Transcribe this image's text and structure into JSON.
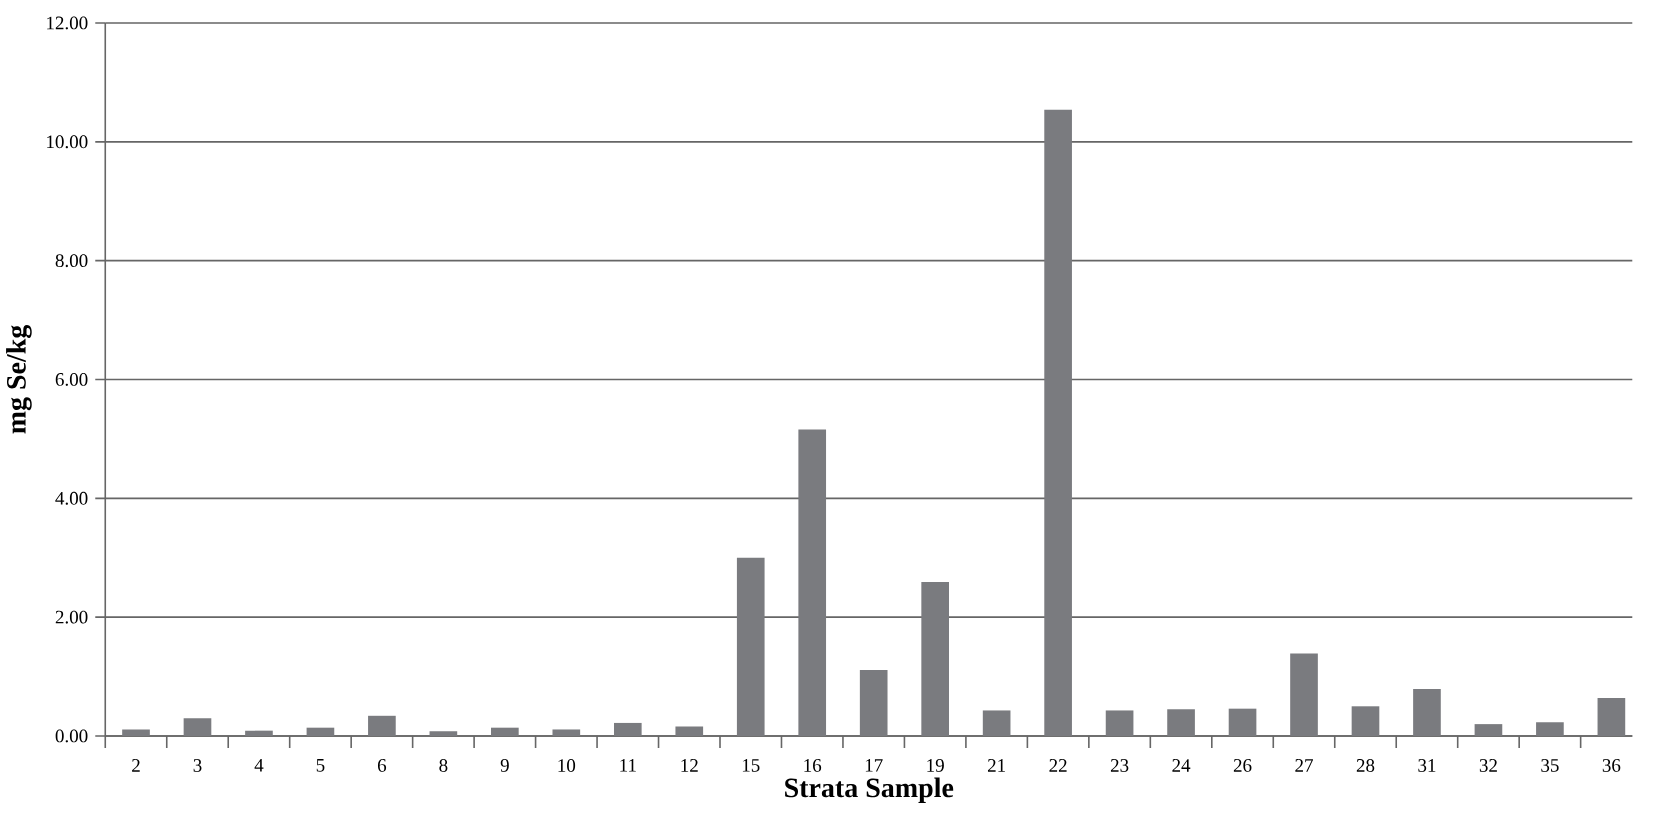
{
  "chart_data": {
    "type": "bar",
    "xlabel": "Strata Sample",
    "ylabel": "mg Se/kg",
    "categories": [
      "2",
      "3",
      "4",
      "5",
      "6",
      "8",
      "9",
      "10",
      "11",
      "12",
      "15",
      "16",
      "17",
      "19",
      "21",
      "22",
      "23",
      "24",
      "26",
      "27",
      "28",
      "31",
      "32",
      "35",
      "36"
    ],
    "values": [
      0.11,
      0.3,
      0.09,
      0.14,
      0.34,
      0.08,
      0.14,
      0.11,
      0.22,
      0.16,
      3.0,
      5.16,
      1.11,
      2.59,
      0.43,
      10.54,
      0.43,
      0.45,
      0.46,
      1.39,
      0.5,
      0.79,
      0.2,
      0.23,
      0.64
    ],
    "color": "#7a7b7f",
    "ylim": [
      0,
      12
    ],
    "yticks": [
      {
        "value": 0,
        "label": "0.00"
      },
      {
        "value": 2,
        "label": "2.00"
      },
      {
        "value": 4,
        "label": "4.00"
      },
      {
        "value": 6,
        "label": "6.00"
      },
      {
        "value": 8,
        "label": "8.00"
      },
      {
        "value": 10,
        "label": "10.00"
      },
      {
        "value": 12,
        "label": "12.00"
      }
    ],
    "grid": "y"
  }
}
